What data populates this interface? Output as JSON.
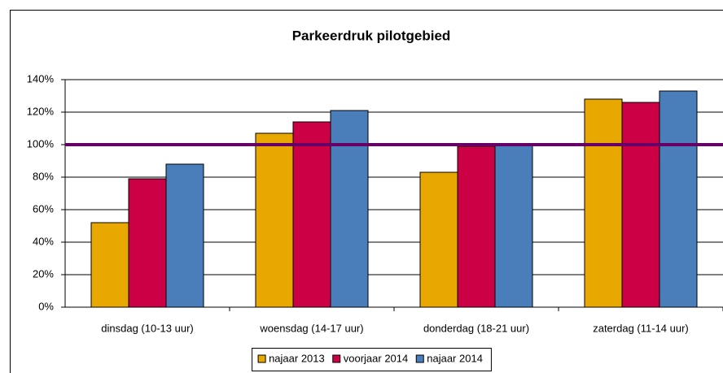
{
  "chart_data": {
    "type": "bar",
    "title": "Parkeerdruk pilotgebied",
    "categories": [
      "dinsdag (10-13 uur)",
      "woensdag (14-17 uur)",
      "donderdag (18-21 uur)",
      "zaterdag (11-14 uur)"
    ],
    "series": [
      {
        "name": "najaar 2013",
        "color": "#e8a800",
        "values": [
          52,
          107,
          83,
          128
        ]
      },
      {
        "name": "voorjaar 2014",
        "color": "#cc0044",
        "values": [
          79,
          114,
          99,
          126
        ]
      },
      {
        "name": "najaar 2014",
        "color": "#4a7ebb",
        "values": [
          88,
          121,
          100,
          133
        ]
      }
    ],
    "ylim": [
      0,
      140
    ],
    "yticks": [
      {
        "value": 0,
        "label": "0%"
      },
      {
        "value": 20,
        "label": "20%"
      },
      {
        "value": 40,
        "label": "40%"
      },
      {
        "value": 60,
        "label": "60%"
      },
      {
        "value": 80,
        "label": "80%"
      },
      {
        "value": 100,
        "label": "100%"
      },
      {
        "value": 120,
        "label": "120%"
      },
      {
        "value": 140,
        "label": "140%"
      }
    ],
    "grid": true,
    "reference_line": {
      "value": 100,
      "color": "#660066"
    },
    "legend": "bottom"
  }
}
